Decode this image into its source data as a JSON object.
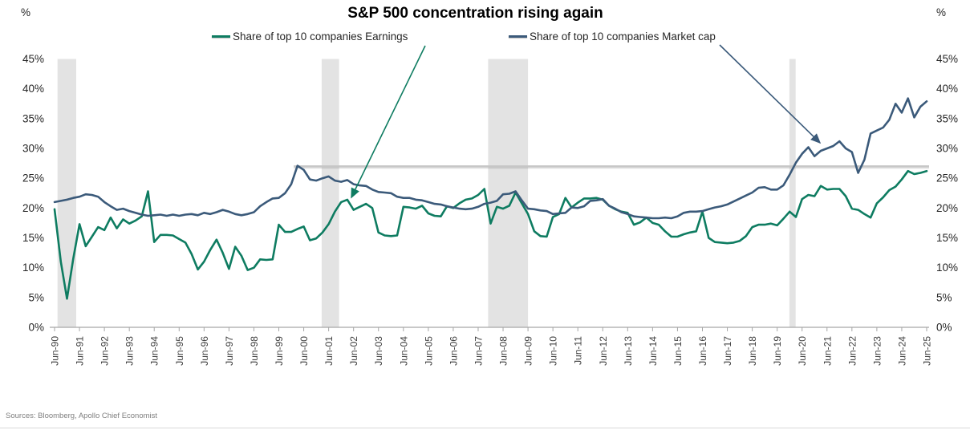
{
  "source": "Sources: Bloomberg, Apollo Chief Economist",
  "chart_data": {
    "type": "line",
    "title": "S&P 500 concentration rising again",
    "y_unit": "%",
    "ylim": [
      0,
      45
    ],
    "x_start": 1990.5,
    "x_end": 2025.5,
    "x_step": 0.25,
    "grid": "off",
    "legend_position": "top",
    "band_color": "#e3e3e3",
    "axis_color": "#a6a6a6",
    "tick_label_color": "#404040",
    "y_label_color": "#262626",
    "legend": [
      {
        "name": "Share of top 10 companies Earnings",
        "color": "#0e7c61"
      },
      {
        "name": "Share of top 10 companies Market cap",
        "color": "#3b5a7a"
      }
    ],
    "x_ticks": [
      "Jun-90",
      "Jun-91",
      "Jun-92",
      "Jun-93",
      "Jun-94",
      "Jun-95",
      "Jun-96",
      "Jun-97",
      "Jun-98",
      "Jun-99",
      "Jun-00",
      "Jun-01",
      "Jun-02",
      "Jun-03",
      "Jun-04",
      "Jun-05",
      "Jun-06",
      "Jun-07",
      "Jun-08",
      "Jun-09",
      "Jun-10",
      "Jun-11",
      "Jun-12",
      "Jun-13",
      "Jun-14",
      "Jun-15",
      "Jun-16",
      "Jun-17",
      "Jun-18",
      "Jun-19",
      "Jun-20",
      "Jun-21",
      "Jun-22",
      "Jun-23",
      "Jun-24",
      "Jun-25"
    ],
    "y_ticks": {
      "values": [
        0,
        5,
        10,
        15,
        20,
        25,
        30,
        35,
        40,
        45
      ],
      "labels": [
        "0%",
        "5%",
        "10%",
        "15%",
        "20%",
        "25%",
        "30%",
        "35%",
        "40%",
        "45%"
      ]
    },
    "recession_bands": [
      [
        1990.62,
        1991.37
      ],
      [
        2001.22,
        2001.92
      ],
      [
        2007.9,
        2009.5
      ],
      [
        2019.99,
        2020.24
      ]
    ],
    "ref_line": {
      "value": 27.0,
      "x_from": 2000.1,
      "color": "#c6c6c6"
    },
    "series": [
      {
        "id": "earnings",
        "name": "Share of top 10 companies Earnings",
        "color": "#0e7c61",
        "values": [
          19.8,
          11.0,
          4.8,
          11.5,
          17.3,
          13.6,
          15.2,
          16.8,
          16.3,
          18.4,
          16.6,
          18.1,
          17.4,
          17.9,
          18.6,
          22.8,
          14.3,
          15.5,
          15.5,
          15.4,
          14.8,
          14.2,
          12.3,
          9.7,
          11.0,
          13.0,
          14.7,
          12.5,
          9.8,
          13.5,
          12.0,
          9.6,
          10.0,
          11.4,
          11.3,
          11.4,
          17.2,
          16.0,
          16.0,
          16.5,
          16.9,
          14.6,
          14.9,
          15.9,
          17.3,
          19.4,
          21.0,
          21.4,
          19.7,
          20.2,
          20.7,
          20.0,
          15.9,
          15.4,
          15.3,
          15.4,
          20.2,
          20.1,
          19.9,
          20.4,
          19.1,
          18.7,
          18.6,
          20.3,
          20.0,
          20.8,
          21.4,
          21.6,
          22.2,
          23.2,
          17.4,
          20.2,
          19.9,
          20.4,
          22.6,
          20.8,
          19.0,
          16.1,
          15.3,
          15.2,
          18.5,
          19.0,
          21.7,
          20.1,
          20.9,
          21.6,
          21.6,
          21.7,
          21.4,
          20.4,
          19.8,
          19.4,
          19.2,
          17.2,
          17.6,
          18.4,
          17.5,
          17.2,
          16.1,
          15.2,
          15.2,
          15.6,
          15.9,
          16.1,
          19.4,
          15.0,
          14.3,
          14.2,
          14.1,
          14.2,
          14.5,
          15.3,
          16.8,
          17.2,
          17.2,
          17.4,
          17.1,
          18.2,
          19.4,
          18.5,
          21.5,
          22.2,
          22.0,
          23.7,
          23.1,
          23.2,
          23.2,
          22.0,
          19.9,
          19.7,
          19.0,
          18.4,
          20.8,
          21.8,
          23.0,
          23.6,
          24.8,
          26.2,
          25.7,
          25.9,
          26.2
        ]
      },
      {
        "id": "market-cap",
        "name": "Share of top 10 companies Market cap",
        "color": "#3b5a7a",
        "values": [
          21.0,
          21.2,
          21.4,
          21.7,
          21.9,
          22.3,
          22.2,
          21.9,
          21.0,
          20.3,
          19.7,
          19.9,
          19.5,
          19.2,
          18.9,
          18.7,
          18.8,
          18.9,
          18.7,
          18.9,
          18.7,
          18.9,
          19.0,
          18.8,
          19.2,
          19.0,
          19.3,
          19.7,
          19.4,
          19.0,
          18.8,
          19.0,
          19.3,
          20.3,
          21.0,
          21.6,
          21.7,
          22.5,
          24.0,
          27.1,
          26.4,
          24.8,
          24.6,
          25.0,
          25.3,
          24.6,
          24.4,
          24.7,
          24.0,
          23.8,
          23.7,
          23.1,
          22.7,
          22.6,
          22.5,
          21.9,
          21.7,
          21.7,
          21.4,
          21.3,
          21.0,
          20.7,
          20.6,
          20.3,
          20.1,
          19.9,
          19.8,
          19.9,
          20.2,
          20.7,
          20.9,
          21.2,
          22.3,
          22.4,
          22.8,
          21.3,
          19.9,
          19.8,
          19.6,
          19.5,
          19.0,
          19.1,
          19.2,
          20.1,
          20.0,
          20.3,
          21.2,
          21.3,
          21.5,
          20.4,
          19.9,
          19.3,
          19.0,
          18.6,
          18.5,
          18.4,
          18.3,
          18.3,
          18.4,
          18.3,
          18.6,
          19.2,
          19.4,
          19.4,
          19.5,
          19.8,
          20.1,
          20.3,
          20.6,
          21.1,
          21.6,
          22.1,
          22.6,
          23.4,
          23.5,
          23.1,
          23.1,
          23.8,
          25.6,
          27.6,
          29.1,
          30.2,
          28.7,
          29.6,
          30.0,
          30.4,
          31.2,
          30.0,
          29.4,
          25.9,
          28.1,
          32.5,
          33.0,
          33.5,
          34.8,
          37.5,
          36.0,
          38.4,
          35.2,
          37.0,
          37.9
        ]
      }
    ]
  }
}
